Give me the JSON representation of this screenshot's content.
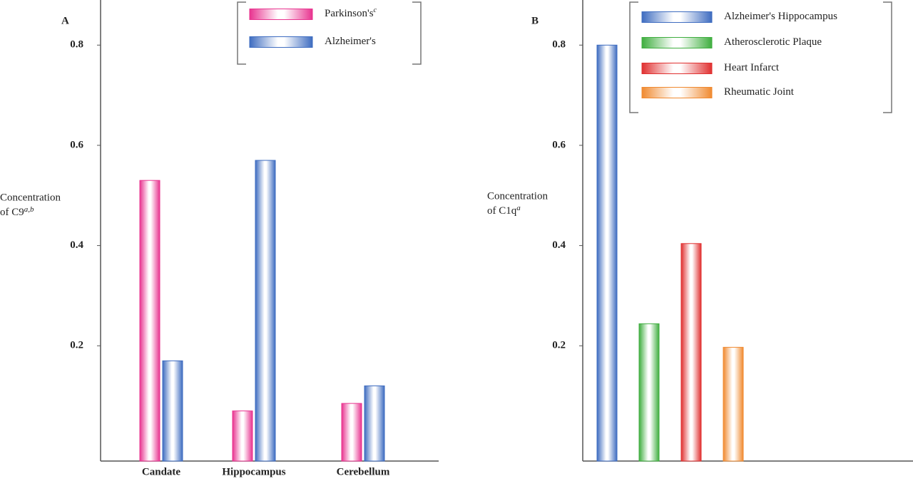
{
  "chart_data": [
    {
      "type": "bar",
      "panel_label": "A",
      "y_label": [
        "Concentration",
        "of C9"
      ],
      "y_label_superscript": "a,b",
      "categories": [
        "Candate",
        "Hippocampus",
        "Cerebellum"
      ],
      "series": [
        {
          "name": "Parkinson's",
          "name_superscript": "c",
          "color": "#e8338f",
          "values": [
            0.53,
            0.07,
            0.085
          ]
        },
        {
          "name": "Alzheimer's",
          "color": "#3e6cc0",
          "values": [
            0.17,
            0.57,
            0.12
          ]
        }
      ],
      "ylim": [
        -0.03,
        0.89
      ],
      "yticks": [
        0.2,
        0.4,
        0.6,
        0.8
      ]
    },
    {
      "type": "bar",
      "panel_label": "B",
      "y_label": [
        "Concentration",
        "of C1q"
      ],
      "y_label_superscript": "a",
      "categories": [
        null
      ],
      "series": [
        {
          "name": "Alzheimer's Hippocampus",
          "color": "#3e6cc0",
          "values": [
            0.8
          ]
        },
        {
          "name": "Atherosclerotic Plaque",
          "color": "#3fae3f",
          "values": [
            0.244
          ]
        },
        {
          "name": "Heart Infarct",
          "color": "#e03030",
          "values": [
            0.404
          ]
        },
        {
          "name": "Rheumatic Joint",
          "color": "#f08a30",
          "values": [
            0.197
          ]
        }
      ],
      "ylim": [
        -0.03,
        0.89
      ],
      "yticks": [
        0.2,
        0.4,
        0.6,
        0.8
      ]
    }
  ]
}
